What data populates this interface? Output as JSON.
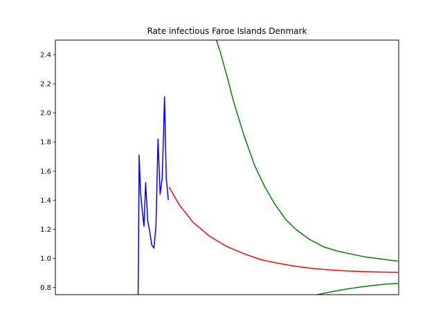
{
  "chart_data": {
    "type": "line",
    "title": "Rate infectious Faroe Islands Denmark",
    "xlabel": "",
    "ylabel": "",
    "x_tick_labels_shown": false,
    "ylim": [
      0.75,
      2.5
    ],
    "yticks": [
      "0.8",
      "1.0",
      "1.2",
      "1.4",
      "1.6",
      "1.8",
      "2.0",
      "2.2",
      "2.4"
    ],
    "ytick_values": [
      0.8,
      1.0,
      1.2,
      1.4,
      1.6,
      1.8,
      2.0,
      2.2,
      2.4
    ],
    "xlim": [
      0,
      100
    ],
    "grid": false,
    "series": [
      {
        "color": "#0000ff",
        "points": [
          [
            24.1,
            0.75
          ],
          [
            24.2,
            1.0
          ],
          [
            24.4,
            1.71
          ],
          [
            24.8,
            1.45
          ],
          [
            25.3,
            1.33
          ],
          [
            25.8,
            1.22
          ],
          [
            26.3,
            1.52
          ],
          [
            26.9,
            1.26
          ],
          [
            27.5,
            1.18
          ],
          [
            28.1,
            1.09
          ],
          [
            28.7,
            1.07
          ],
          [
            29.3,
            1.22
          ],
          [
            29.9,
            1.82
          ],
          [
            30.5,
            1.44
          ],
          [
            31.1,
            1.55
          ],
          [
            31.5,
            1.85
          ],
          [
            31.8,
            2.11
          ],
          [
            32.3,
            1.55
          ],
          [
            32.9,
            1.4
          ]
        ]
      },
      {
        "color": "#ff0000",
        "points": [
          [
            33.1,
            1.49
          ],
          [
            36,
            1.37
          ],
          [
            40,
            1.25
          ],
          [
            45,
            1.15
          ],
          [
            50,
            1.08
          ],
          [
            55,
            1.03
          ],
          [
            60,
            0.99
          ],
          [
            65,
            0.965
          ],
          [
            70,
            0.945
          ],
          [
            75,
            0.93
          ],
          [
            80,
            0.92
          ],
          [
            85,
            0.913
          ],
          [
            90,
            0.908
          ],
          [
            95,
            0.905
          ],
          [
            99.8,
            0.903
          ]
        ]
      },
      {
        "color": "#008000",
        "points": [
          [
            46.9,
            2.5
          ],
          [
            48,
            2.42
          ],
          [
            50,
            2.25
          ],
          [
            52,
            2.07
          ],
          [
            55,
            1.84
          ],
          [
            58,
            1.64
          ],
          [
            61,
            1.49
          ],
          [
            64,
            1.37
          ],
          [
            67,
            1.27
          ],
          [
            70,
            1.2
          ],
          [
            74,
            1.13
          ],
          [
            78,
            1.08
          ],
          [
            82,
            1.05
          ],
          [
            86,
            1.03
          ],
          [
            90,
            1.01
          ],
          [
            95,
            0.995
          ],
          [
            99.8,
            0.98
          ]
        ]
      },
      {
        "color": "#008000",
        "points": [
          [
            76.2,
            0.75
          ],
          [
            80,
            0.768
          ],
          [
            84,
            0.785
          ],
          [
            88,
            0.8
          ],
          [
            92,
            0.812
          ],
          [
            96,
            0.822
          ],
          [
            99.8,
            0.828
          ]
        ]
      }
    ]
  }
}
